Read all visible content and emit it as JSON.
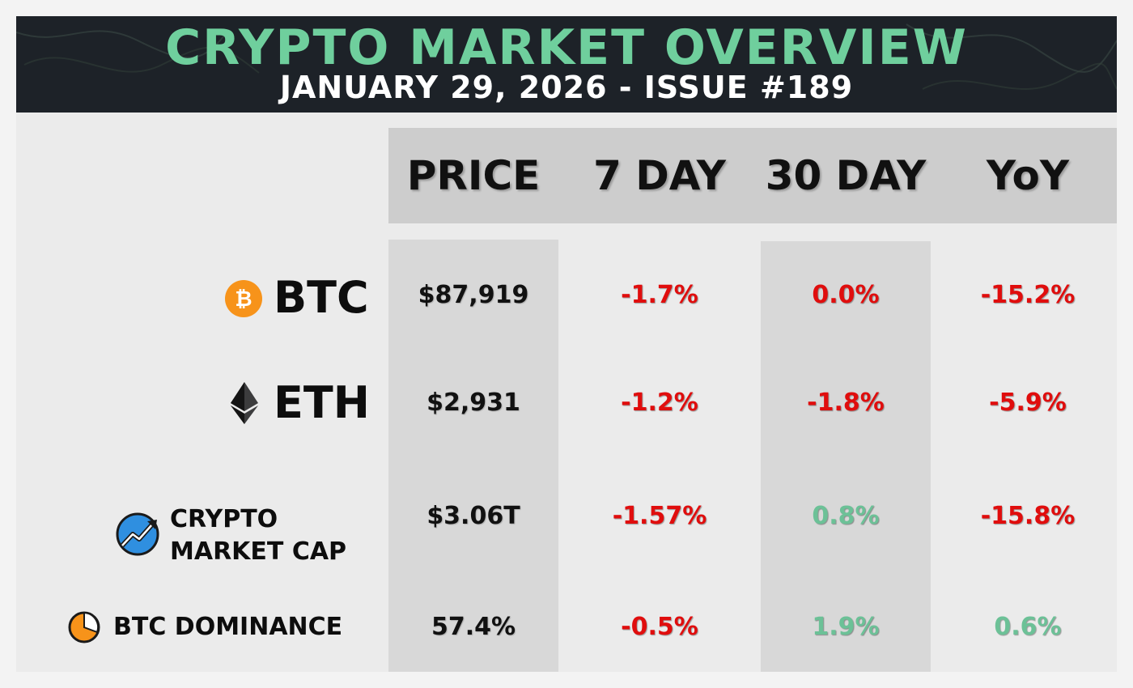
{
  "header": {
    "title": "CRYPTO MARKET OVERVIEW",
    "subtitle": "JANUARY 29, 2026 - ISSUE #189"
  },
  "columns": [
    "PRICE",
    "7 DAY",
    "30 DAY",
    "YoY"
  ],
  "rows": {
    "btc": {
      "icon": "bitcoin-icon",
      "label": "BTC",
      "price": "$87,919",
      "d7": "-1.7%",
      "d30": "0.0%",
      "yoy": "-15.2%"
    },
    "eth": {
      "icon": "ethereum-icon",
      "label": "ETH",
      "price": "$2,931",
      "d7": "-1.2%",
      "d30": "-1.8%",
      "yoy": "-5.9%"
    },
    "mcap": {
      "icon": "market-cap-chart-icon",
      "label_line1": "CRYPTO",
      "label_line2": "MARKET CAP",
      "price": "$3.06T",
      "d7": "-1.57%",
      "d30": "0.8%",
      "yoy": "-15.8%"
    },
    "dom": {
      "icon": "pie-chart-icon",
      "label": "BTC DOMINANCE",
      "price": "57.4%",
      "d7": "-0.5%",
      "d30": "1.9%",
      "yoy": "0.6%"
    }
  },
  "colors": {
    "header_bg": "#1d2228",
    "title": "#6fcf9d",
    "negative": "#e00d0d",
    "positive": "#6cc197",
    "bitcoin": "#f7931a",
    "dominance": "#f7931a",
    "market_cap": "#2f8fe0"
  }
}
